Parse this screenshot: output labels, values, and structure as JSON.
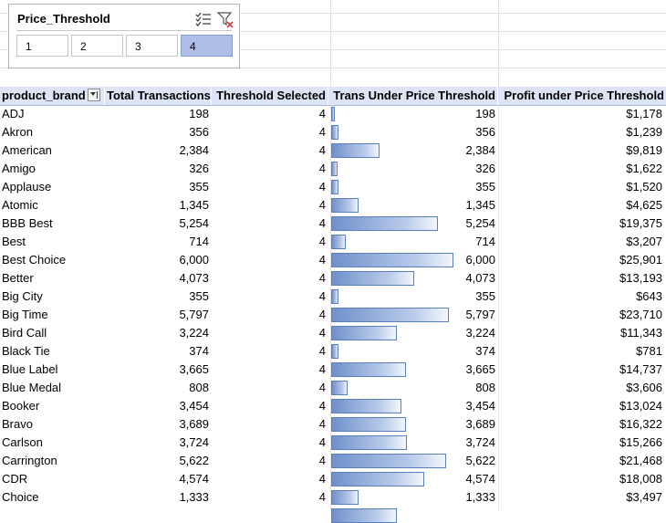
{
  "slicer": {
    "title": "Price_Threshold",
    "items": [
      "1",
      "2",
      "3",
      "4"
    ],
    "selected": "4",
    "icons": {
      "multi_select": "multi-select-icon",
      "clear_filter": "clear-filter-icon"
    }
  },
  "table": {
    "headers": {
      "brand": "product_brand",
      "total": "Total Transactions",
      "threshold": "Threshold Selected",
      "trans": "Trans Under Price Threshold",
      "profit": "Profit under Price Threshold"
    },
    "bar_color": "#6f90cb",
    "bar_max_value": 6000,
    "rows": [
      {
        "brand": "ADJ",
        "total": "198",
        "threshold": "4",
        "trans": "198",
        "profit": "$1,178",
        "bar": 198
      },
      {
        "brand": "Akron",
        "total": "356",
        "threshold": "4",
        "trans": "356",
        "profit": "$1,239",
        "bar": 356
      },
      {
        "brand": "American",
        "total": "2,384",
        "threshold": "4",
        "trans": "2,384",
        "profit": "$9,819",
        "bar": 2384
      },
      {
        "brand": "Amigo",
        "total": "326",
        "threshold": "4",
        "trans": "326",
        "profit": "$1,622",
        "bar": 326
      },
      {
        "brand": "Applause",
        "total": "355",
        "threshold": "4",
        "trans": "355",
        "profit": "$1,520",
        "bar": 355
      },
      {
        "brand": "Atomic",
        "total": "1,345",
        "threshold": "4",
        "trans": "1,345",
        "profit": "$4,625",
        "bar": 1345
      },
      {
        "brand": "BBB Best",
        "total": "5,254",
        "threshold": "4",
        "trans": "5,254",
        "profit": "$19,375",
        "bar": 5254
      },
      {
        "brand": "Best",
        "total": "714",
        "threshold": "4",
        "trans": "714",
        "profit": "$3,207",
        "bar": 714
      },
      {
        "brand": "Best Choice",
        "total": "6,000",
        "threshold": "4",
        "trans": "6,000",
        "profit": "$25,901",
        "bar": 6000
      },
      {
        "brand": "Better",
        "total": "4,073",
        "threshold": "4",
        "trans": "4,073",
        "profit": "$13,193",
        "bar": 4073
      },
      {
        "brand": "Big City",
        "total": "355",
        "threshold": "4",
        "trans": "355",
        "profit": "$643",
        "bar": 355
      },
      {
        "brand": "Big Time",
        "total": "5,797",
        "threshold": "4",
        "trans": "5,797",
        "profit": "$23,710",
        "bar": 5797
      },
      {
        "brand": "Bird Call",
        "total": "3,224",
        "threshold": "4",
        "trans": "3,224",
        "profit": "$11,343",
        "bar": 3224
      },
      {
        "brand": "Black Tie",
        "total": "374",
        "threshold": "4",
        "trans": "374",
        "profit": "$781",
        "bar": 374
      },
      {
        "brand": "Blue Label",
        "total": "3,665",
        "threshold": "4",
        "trans": "3,665",
        "profit": "$14,737",
        "bar": 3665
      },
      {
        "brand": "Blue Medal",
        "total": "808",
        "threshold": "4",
        "trans": "808",
        "profit": "$3,606",
        "bar": 808
      },
      {
        "brand": "Booker",
        "total": "3,454",
        "threshold": "4",
        "trans": "3,454",
        "profit": "$13,024",
        "bar": 3454
      },
      {
        "brand": "Bravo",
        "total": "3,689",
        "threshold": "4",
        "trans": "3,689",
        "profit": "$16,322",
        "bar": 3689
      },
      {
        "brand": "Carlson",
        "total": "3,724",
        "threshold": "4",
        "trans": "3,724",
        "profit": "$15,266",
        "bar": 3724
      },
      {
        "brand": "Carrington",
        "total": "5,622",
        "threshold": "4",
        "trans": "5,622",
        "profit": "$21,468",
        "bar": 5622
      },
      {
        "brand": "CDR",
        "total": "4,574",
        "threshold": "4",
        "trans": "4,574",
        "profit": "$18,008",
        "bar": 4574
      },
      {
        "brand": "Choice",
        "total": "1,333",
        "threshold": "4",
        "trans": "1,333",
        "profit": "$3,497",
        "bar": 1333
      }
    ]
  }
}
